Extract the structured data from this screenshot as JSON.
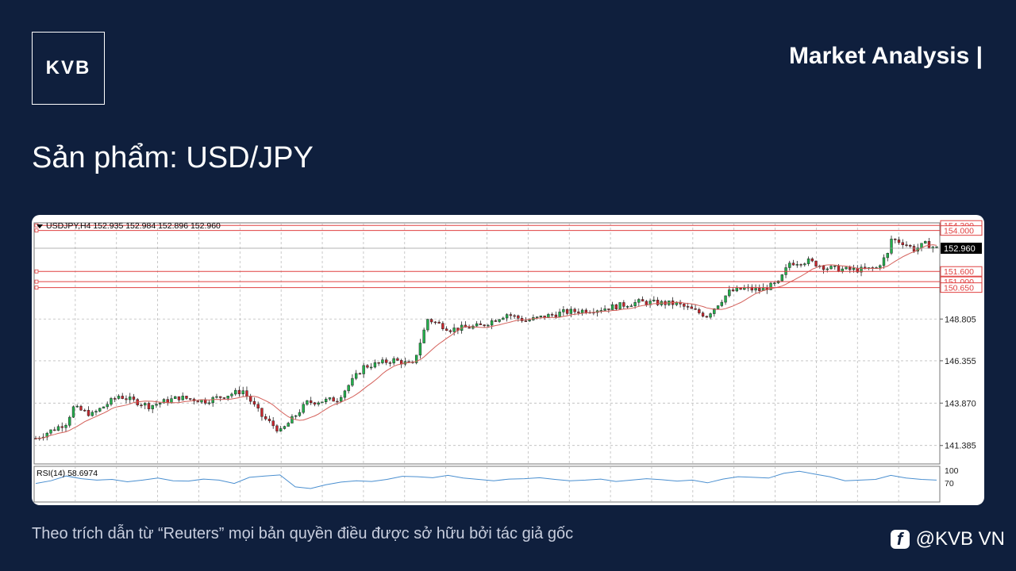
{
  "header": {
    "logo_text": "KVB",
    "brand_title": "Market Analysis |",
    "product_label": "Sản phẩm: USD/JPY"
  },
  "footer": {
    "note": "Theo trích dẫn từ “Reuters” mọi bản quyền điều được sở hữu bởi tác giả gốc",
    "social_handle": "@KVB VN",
    "social_icon": "facebook-icon"
  },
  "colors": {
    "background": "#0f1f3d",
    "bull": "#22b14c",
    "bear": "#c8262d",
    "ma": "#d4605a",
    "rsi": "#4a8fd0",
    "level_line": "#e04040"
  },
  "chart_data": {
    "type": "candlestick",
    "title": "USDJPY,H4  152.935 152.984 152.896 152.960",
    "y_ticks": [
      141.385,
      143.87,
      146.355,
      148.805
    ],
    "ylim": [
      140.3,
      154.45
    ],
    "current_price": "152.960",
    "levels": [
      "154.300",
      "154.000",
      "151.600",
      "151.000",
      "150.650"
    ],
    "grid": true,
    "path_points": [
      [
        0,
        141.8
      ],
      [
        8,
        142.7
      ],
      [
        10,
        143.6
      ],
      [
        15,
        143.2
      ],
      [
        22,
        144.3
      ],
      [
        30,
        143.7
      ],
      [
        38,
        144.2
      ],
      [
        45,
        144.0
      ],
      [
        55,
        144.6
      ],
      [
        60,
        143.1
      ],
      [
        65,
        142.2
      ],
      [
        72,
        143.9
      ],
      [
        80,
        144.1
      ],
      [
        87,
        146.0
      ],
      [
        95,
        146.4
      ],
      [
        100,
        146.1
      ],
      [
        104,
        148.8
      ],
      [
        110,
        148.2
      ],
      [
        118,
        148.4
      ],
      [
        125,
        149.1
      ],
      [
        130,
        148.7
      ],
      [
        140,
        149.2
      ],
      [
        150,
        149.4
      ],
      [
        160,
        149.8
      ],
      [
        170,
        149.7
      ],
      [
        178,
        149.0
      ],
      [
        184,
        150.4
      ],
      [
        188,
        150.6
      ],
      [
        192,
        150.5
      ],
      [
        197,
        150.9
      ],
      [
        200,
        152.1
      ],
      [
        205,
        152.2
      ],
      [
        210,
        151.8
      ],
      [
        215,
        151.7
      ],
      [
        220,
        151.7
      ],
      [
        223,
        151.8
      ],
      [
        226,
        152.6
      ],
      [
        227,
        153.5
      ],
      [
        230,
        153.3
      ],
      [
        233,
        152.9
      ],
      [
        236,
        153.2
      ],
      [
        239,
        152.96
      ]
    ],
    "rsi": {
      "label": "RSI(14) 58.6974",
      "ticks": [
        "100",
        "70"
      ],
      "values": [
        50,
        58,
        72,
        64,
        60,
        62,
        55,
        60,
        66,
        58,
        57,
        63,
        60,
        50,
        68,
        72,
        75,
        40,
        35,
        46,
        54,
        58,
        56,
        62,
        71,
        70,
        67,
        74,
        66,
        62,
        58,
        63,
        64,
        67,
        62,
        58,
        60,
        63,
        56,
        60,
        64,
        61,
        57,
        60,
        52,
        63,
        70,
        68,
        66,
        80,
        86,
        78,
        70,
        58,
        60,
        62,
        74,
        66,
        62,
        60
      ]
    }
  }
}
